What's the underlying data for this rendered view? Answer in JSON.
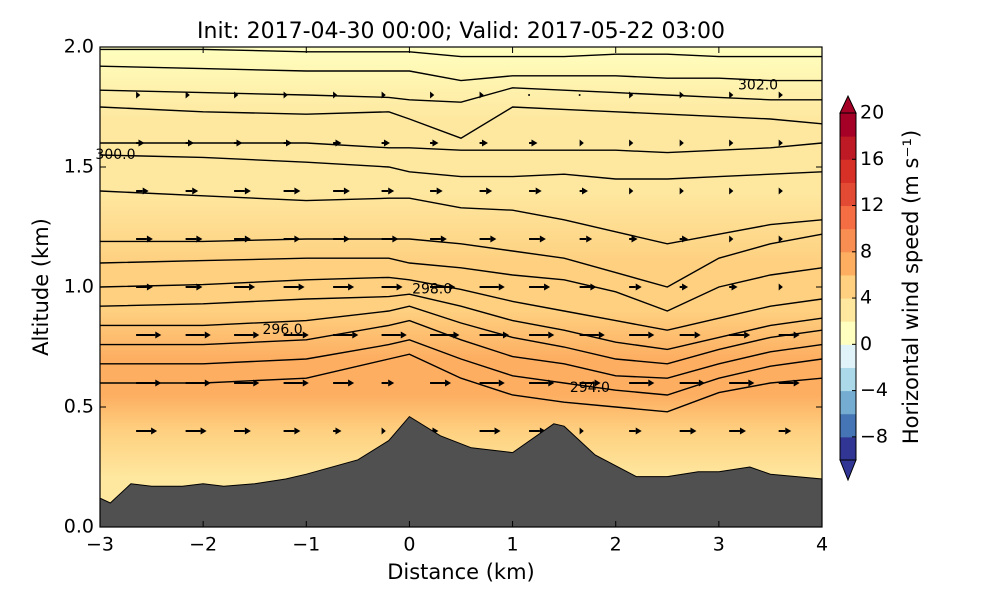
{
  "chart_data": {
    "type": "cross-section",
    "title": "Init: 2017-04-30 00:00; Valid: 2017-05-22 03:00",
    "x_label": "Distance (km)",
    "y_label": "Altitude (km)",
    "xlim": [
      -3,
      4
    ],
    "xticks": [
      {
        "value": -3,
        "label": "−3"
      },
      {
        "value": -2,
        "label": "−2"
      },
      {
        "value": -1,
        "label": "−1"
      },
      0,
      1,
      2,
      3,
      4
    ],
    "ylim": [
      0,
      2
    ],
    "yticks": [
      {
        "value": 0,
        "label": "0.0"
      },
      0.5,
      {
        "value": 1,
        "label": "1.0"
      },
      1.5,
      {
        "value": 2,
        "label": "2.0"
      }
    ],
    "colorbar": {
      "label": "Horizontal wind speed (m s⁻¹)",
      "lim": [
        -10,
        20
      ],
      "ticks": [
        {
          "value": -8,
          "label": "−8"
        },
        {
          "value": -4,
          "label": "−4"
        },
        0,
        4,
        8,
        12,
        16,
        20
      ],
      "levels": [
        -10,
        -8,
        -6,
        -4,
        -2,
        0,
        2,
        4,
        6,
        8,
        10,
        12,
        14,
        16,
        18,
        20
      ],
      "colors": [
        "#313695",
        "#4575b4",
        "#74add1",
        "#abd9e9",
        "#e0f3f8",
        "#ffffbf",
        "#fee8a0",
        "#fed080",
        "#fdae61",
        "#f98e52",
        "#f46d43",
        "#e34a33",
        "#d73027",
        "#bd1a26",
        "#a50026"
      ]
    },
    "speed_profile": {
      "altitude": [
        0.2,
        0.4,
        0.55,
        0.7,
        0.9,
        1.1,
        1.4,
        1.7,
        2.0
      ],
      "values": [
        2.5,
        5,
        7,
        6.5,
        5,
        4,
        3,
        2,
        1
      ]
    },
    "terrain": {
      "color": "#505050",
      "x": [
        -3,
        -2.9,
        -2.7,
        -2.5,
        -2.2,
        -2,
        -1.8,
        -1.5,
        -1.2,
        -1,
        -0.5,
        -0.2,
        0,
        0.3,
        0.6,
        1,
        1.4,
        1.5,
        1.8,
        2.2,
        2.5,
        2.8,
        3,
        3.3,
        3.5,
        4
      ],
      "altitude": [
        0.12,
        0.1,
        0.18,
        0.17,
        0.17,
        0.18,
        0.17,
        0.18,
        0.2,
        0.22,
        0.28,
        0.36,
        0.46,
        0.38,
        0.33,
        0.31,
        0.43,
        0.42,
        0.3,
        0.21,
        0.21,
        0.23,
        0.23,
        0.25,
        0.22,
        0.2
      ]
    },
    "isentropes": {
      "x": [
        -3,
        -2,
        -1,
        -0.2,
        0,
        0.5,
        1,
        1.5,
        2,
        2.5,
        3,
        3.5,
        4
      ],
      "lines": [
        [
          0.6,
          0.6,
          0.62,
          0.7,
          0.72,
          0.62,
          0.55,
          0.52,
          0.5,
          0.48,
          0.56,
          0.6,
          0.62
        ],
        [
          0.68,
          0.68,
          0.7,
          0.76,
          0.78,
          0.7,
          0.63,
          0.6,
          0.57,
          0.55,
          0.62,
          0.67,
          0.7
        ],
        [
          0.76,
          0.76,
          0.78,
          0.84,
          0.86,
          0.78,
          0.71,
          0.68,
          0.63,
          0.62,
          0.68,
          0.73,
          0.76
        ],
        [
          0.84,
          0.84,
          0.86,
          0.9,
          0.92,
          0.85,
          0.79,
          0.75,
          0.7,
          0.68,
          0.74,
          0.79,
          0.82
        ],
        [
          0.92,
          0.93,
          0.95,
          0.96,
          0.97,
          0.92,
          0.86,
          0.82,
          0.77,
          0.74,
          0.79,
          0.84,
          0.87
        ],
        [
          1.0,
          1.01,
          1.03,
          1.04,
          1.03,
          0.99,
          0.94,
          0.9,
          0.86,
          0.82,
          0.87,
          0.92,
          0.95
        ],
        [
          1.1,
          1.11,
          1.12,
          1.12,
          1.1,
          1.08,
          1.05,
          1.03,
          0.98,
          0.9,
          1.0,
          1.05,
          1.08
        ],
        [
          1.19,
          1.19,
          1.2,
          1.2,
          1.2,
          1.18,
          1.15,
          1.12,
          1.06,
          1.0,
          1.12,
          1.18,
          1.22
        ],
        [
          1.4,
          1.38,
          1.36,
          1.37,
          1.37,
          1.33,
          1.32,
          1.28,
          1.23,
          1.18,
          1.22,
          1.26,
          1.28
        ],
        [
          1.55,
          1.54,
          1.52,
          1.5,
          1.48,
          1.46,
          1.46,
          1.47,
          1.45,
          1.45,
          1.46,
          1.47,
          1.48
        ],
        [
          1.6,
          1.6,
          1.6,
          1.58,
          1.58,
          1.57,
          1.57,
          1.57,
          1.57,
          1.56,
          1.57,
          1.58,
          1.6
        ],
        [
          1.75,
          1.73,
          1.72,
          1.73,
          1.7,
          1.62,
          1.75,
          1.74,
          1.73,
          1.72,
          1.71,
          1.7,
          1.68
        ],
        [
          1.82,
          1.81,
          1.8,
          1.79,
          1.78,
          1.77,
          1.83,
          1.82,
          1.81,
          1.8,
          1.79,
          1.78,
          1.78
        ],
        [
          1.92,
          1.91,
          1.9,
          1.9,
          1.9,
          1.86,
          1.88,
          1.88,
          1.88,
          1.87,
          1.87,
          1.86,
          1.86
        ],
        [
          1.99,
          1.99,
          1.98,
          1.98,
          1.98,
          1.96,
          1.96,
          1.96,
          1.97,
          1.97,
          1.96,
          1.96,
          1.96
        ]
      ]
    },
    "contour_labels": [
      {
        "text": "302.0",
        "x": 3.38,
        "altitude": 1.84
      },
      {
        "text": "300.0",
        "x": -2.85,
        "altitude": 1.55
      },
      {
        "text": "298.0",
        "x": 0.22,
        "altitude": 0.99
      },
      {
        "text": "296.0",
        "x": -1.23,
        "altitude": 0.82
      },
      {
        "text": "294.0",
        "x": 1.75,
        "altitude": 0.58
      }
    ],
    "wind": {
      "x": [
        -2.65,
        -2.17,
        -1.7,
        -1.22,
        -0.74,
        -0.27,
        0.2,
        0.68,
        1.16,
        1.65,
        2.13,
        2.62,
        3.1,
        3.58
      ],
      "altitude": [
        0.4,
        0.6,
        0.8,
        1.0,
        1.2,
        1.4,
        1.6,
        1.8
      ],
      "u": [
        [
          5,
          5,
          4,
          4,
          2,
          1,
          2,
          5,
          4,
          1,
          3,
          4,
          4,
          3
        ],
        [
          6,
          6,
          6,
          6,
          5,
          3,
          5,
          6,
          6,
          5,
          6,
          6,
          6,
          5
        ],
        [
          6,
          6,
          6,
          6,
          6,
          6,
          7,
          7,
          6,
          6,
          6,
          5,
          5,
          5
        ],
        [
          4,
          4,
          5,
          5,
          5,
          5,
          6,
          6,
          5,
          4,
          3,
          2,
          2,
          1
        ],
        [
          4,
          4,
          4,
          4,
          4,
          4,
          4,
          4,
          4,
          3,
          2,
          2,
          1,
          1
        ],
        [
          3,
          3,
          4,
          4,
          4,
          3,
          3,
          3,
          3,
          2,
          1,
          1,
          1,
          1
        ],
        [
          2,
          2,
          2,
          2,
          2,
          2,
          2,
          2,
          2,
          1,
          1,
          1,
          1,
          1
        ],
        [
          1,
          1,
          1,
          1,
          1,
          1,
          1,
          1,
          0,
          0,
          1,
          1,
          1,
          1
        ]
      ]
    }
  }
}
